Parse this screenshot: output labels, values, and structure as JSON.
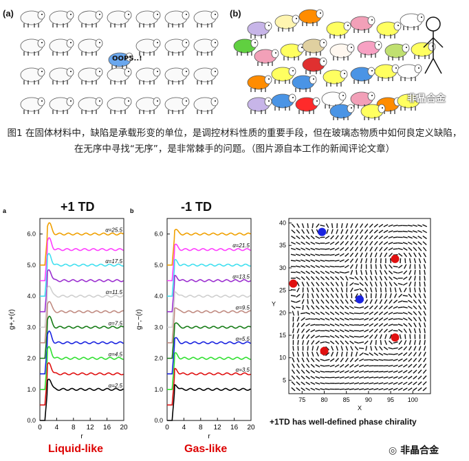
{
  "figure1": {
    "panel_a_label": "(a)",
    "panel_b_label": "(b)",
    "oops_text": "OOPS..!",
    "watermark_top": "非晶合金",
    "caption": "图1 在固体材料中，缺陷是承载形变的单位，是调控材料性质的重要手段，但在玻璃态物质中如何良定义缺陷，在无序中寻找“无序”，是非常棘手的问题。（图片源自本工作的新闻评论文章）"
  },
  "figure2": {
    "panel_a": {
      "letter": "a",
      "title": "+1 TD",
      "bottom_label": "Liquid-like",
      "alpha_labels": [
        "α=25.5",
        "α=17.5",
        "α=11.5",
        "α=7.5",
        "α=4.5",
        "α=2.5"
      ],
      "ylabel": "g+,+(r)"
    },
    "panel_b": {
      "letter": "b",
      "title": "-1 TD",
      "bottom_label": "Gas-like",
      "alpha_labels": [
        "α=21.5",
        "α=13.5",
        "α=9.5",
        "α=5.5",
        "α=3.5"
      ],
      "ylabel": "g−,−(r)"
    },
    "panel_c": {
      "xlabel": "X",
      "ylabel": "Y",
      "caption": "+1TD has well-defined phase chirality",
      "x_ticks": [
        "75",
        "80",
        "85",
        "90",
        "95",
        "100"
      ],
      "y_ticks": [
        "40",
        "35",
        "30",
        "25",
        "20",
        "15",
        "10",
        "5"
      ]
    },
    "x_ticks": [
      "0",
      "4",
      "8",
      "12",
      "16",
      "20"
    ],
    "x_label": "r",
    "y_ticks": [
      "6.0",
      "5.0",
      "4.0",
      "3.0",
      "2.0",
      "1.0",
      "0.0"
    ],
    "watermark_bottom": "非晶合金"
  },
  "chart_data": [
    {
      "type": "line",
      "title": "+1 TD",
      "xlabel": "r",
      "ylabel": "g+,+(r)",
      "xlim": [
        0,
        20
      ],
      "ylim": [
        0,
        6.5
      ],
      "series": [
        {
          "name": "α=25.5",
          "color": "#f0a000",
          "offset": 6.0
        },
        {
          "name": "",
          "color": "#ff3cff",
          "offset": 5.5
        },
        {
          "name": "α=17.5",
          "color": "#40e0f0",
          "offset": 5.0
        },
        {
          "name": "",
          "color": "#9b2fd0",
          "offset": 4.5
        },
        {
          "name": "α=11.5",
          "color": "#cfcfcf",
          "offset": 4.0
        },
        {
          "name": "",
          "color": "#c08a80",
          "offset": 3.5
        },
        {
          "name": "α=7.5",
          "color": "#137a13",
          "offset": 3.0
        },
        {
          "name": "",
          "color": "#1a23e0",
          "offset": 2.5
        },
        {
          "name": "α=4.5",
          "color": "#30e030",
          "offset": 2.0
        },
        {
          "name": "",
          "color": "#e01010",
          "offset": 1.5
        },
        {
          "name": "α=2.5",
          "color": "#000000",
          "offset": 1.0
        }
      ]
    },
    {
      "type": "line",
      "title": "-1 TD",
      "xlabel": "r",
      "ylabel": "g−,−(r)",
      "xlim": [
        0,
        20
      ],
      "ylim": [
        0,
        6.5
      ],
      "series": [
        {
          "name": "",
          "color": "#f0a000",
          "offset": 6.0
        },
        {
          "name": "α=21.5",
          "color": "#ff3cff",
          "offset": 5.5
        },
        {
          "name": "",
          "color": "#40e0f0",
          "offset": 5.0
        },
        {
          "name": "α=13.5",
          "color": "#9b2fd0",
          "offset": 4.5
        },
        {
          "name": "",
          "color": "#cfcfcf",
          "offset": 4.0
        },
        {
          "name": "α=9.5",
          "color": "#c08a80",
          "offset": 3.5
        },
        {
          "name": "",
          "color": "#137a13",
          "offset": 3.0
        },
        {
          "name": "α=5.5",
          "color": "#1a23e0",
          "offset": 2.5
        },
        {
          "name": "",
          "color": "#30e030",
          "offset": 2.0
        },
        {
          "name": "α=3.5",
          "color": "#e01010",
          "offset": 1.5
        },
        {
          "name": "",
          "color": "#000000",
          "offset": 1.0
        }
      ]
    },
    {
      "type": "scatter",
      "xlabel": "X",
      "ylabel": "Y",
      "xlim": [
        72,
        104
      ],
      "ylim": [
        2,
        41
      ],
      "series": [
        {
          "name": "",
          "color": "#e01010",
          "points": [
            [
              96,
              32
            ],
            [
              73,
              26.5
            ],
            [
              80,
              11.5
            ],
            [
              96,
              14.5
            ]
          ]
        },
        {
          "name": "",
          "color": "#1a23e0",
          "points": [
            [
              79.5,
              38
            ],
            [
              88,
              23
            ]
          ]
        }
      ]
    }
  ]
}
